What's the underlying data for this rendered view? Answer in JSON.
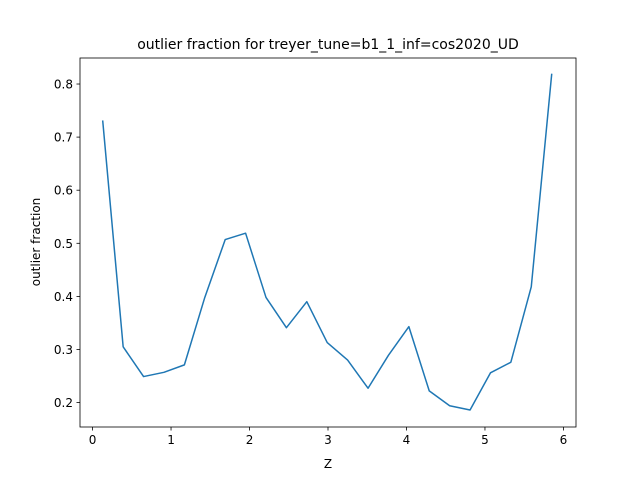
{
  "chart_data": {
    "type": "line",
    "title": "outlier fraction for treyer_tune=b1_1_inf=cos2020_UD",
    "xlabel": "Z",
    "ylabel": "outlier fraction",
    "xlim": [
      -0.16,
      6.16
    ],
    "ylim": [
      0.154,
      0.849
    ],
    "xticks": [
      0,
      1,
      2,
      3,
      4,
      5,
      6
    ],
    "yticks": [
      0.2,
      0.3,
      0.4,
      0.5,
      0.6,
      0.7,
      0.8
    ],
    "grid": false,
    "color": "#1f77b4",
    "series": [
      {
        "x": [
          0.13,
          0.39,
          0.65,
          0.91,
          1.17,
          1.43,
          1.69,
          1.95,
          2.21,
          2.47,
          2.73,
          2.99,
          3.25,
          3.51,
          3.77,
          4.03,
          4.29,
          4.55,
          4.81,
          5.07,
          5.33,
          5.59,
          5.85
        ],
        "y": [
          0.73,
          0.305,
          0.249,
          0.257,
          0.271,
          0.398,
          0.507,
          0.519,
          0.398,
          0.341,
          0.39,
          0.313,
          0.28,
          0.227,
          0.289,
          0.343,
          0.222,
          0.194,
          0.186,
          0.256,
          0.276,
          0.418,
          0.818
        ]
      }
    ]
  }
}
